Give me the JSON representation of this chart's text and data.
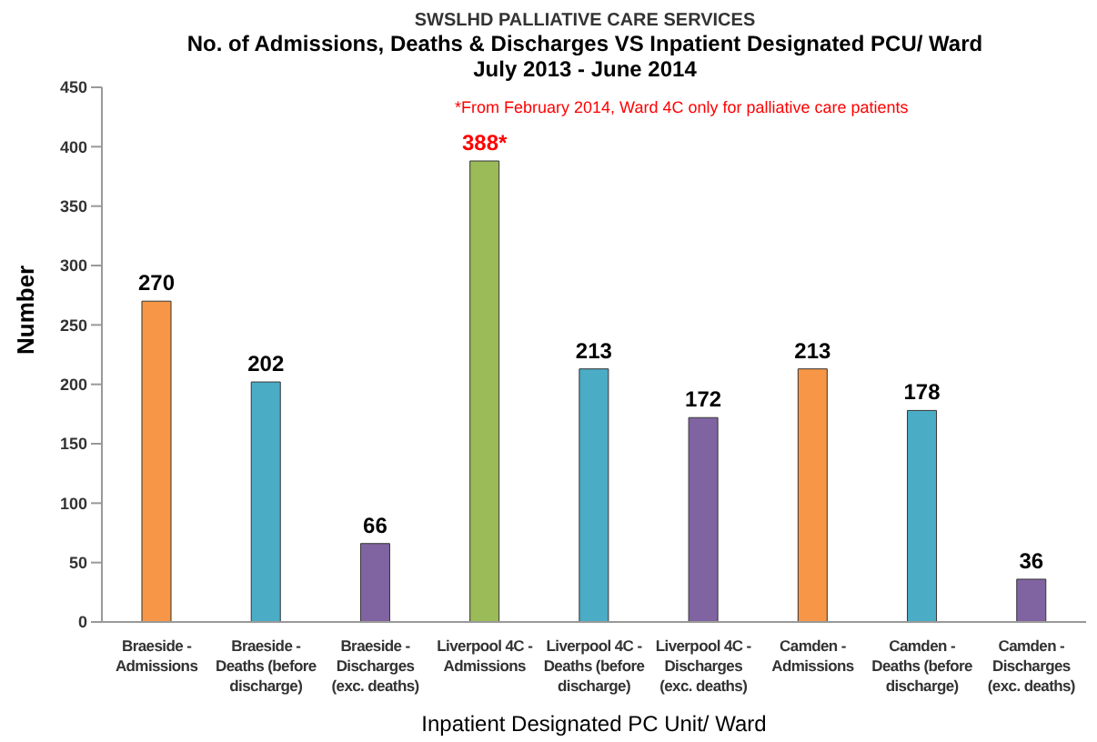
{
  "chart_data": {
    "type": "bar",
    "title": "SWSLHD PALLIATIVE CARE SERVICES",
    "subtitle": "No. of Admissions, Deaths & Discharges VS Inpatient Designated PCU/ Ward\nJuly 2013 - June 2014",
    "xlabel": "Inpatient Designated PC Unit/ Ward",
    "ylabel": "Number",
    "categories": [
      "Braeside - Admissions",
      "Braeside - Deaths (before discharge)",
      "Braeside - Discharges (exc. deaths)",
      "Liverpool 4C - Admissions",
      "Liverpool 4C - Deaths (before discharge)",
      "Liverpool 4C - Discharges (exc. deaths)",
      "Camden - Admissions",
      "Camden - Deaths (before discharge)",
      "Camden - Discharges (exc. deaths)"
    ],
    "values": [
      270,
      202,
      66,
      388,
      213,
      172,
      213,
      178,
      36
    ],
    "value_labels": [
      "270",
      "202",
      "66",
      "388*",
      "213",
      "172",
      "213",
      "178",
      "36"
    ],
    "colors": [
      "#f79646",
      "#4bacc6",
      "#8064a2",
      "#9bbb59",
      "#4bacc6",
      "#8064a2",
      "#f79646",
      "#4bacc6",
      "#8064a2"
    ],
    "ylim": [
      0,
      450
    ],
    "yticks": [
      0,
      50,
      100,
      150,
      200,
      250,
      300,
      350,
      400,
      450
    ],
    "grid": false,
    "legend": false,
    "annotations": [
      "*From February 2014, Ward 4C only for palliative care patients"
    ]
  }
}
